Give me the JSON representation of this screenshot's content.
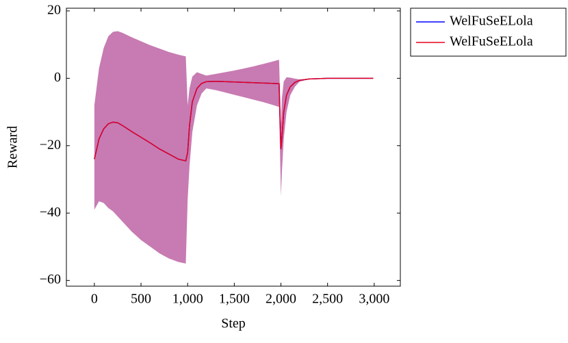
{
  "chart_data": {
    "type": "line",
    "x_label": "Step",
    "y_label": "Reward",
    "x": [
      0,
      50,
      100,
      150,
      200,
      250,
      300,
      400,
      500,
      600,
      700,
      800,
      900,
      980,
      1000,
      1020,
      1050,
      1100,
      1150,
      1200,
      1300,
      1400,
      1500,
      1600,
      1700,
      1800,
      1900,
      1980,
      2000,
      2010,
      2030,
      2060,
      2100,
      2150,
      2200,
      2300,
      2400,
      2500,
      2700,
      2990
    ],
    "series": [
      {
        "name": "WelFuSeELola",
        "color": "#0000ff",
        "values": [
          -24,
          -18,
          -15,
          -13.5,
          -13,
          -13.2,
          -14,
          -15.8,
          -17.5,
          -19.2,
          -21,
          -22.5,
          -24,
          -24.5,
          -22,
          -14,
          -7,
          -3,
          -1.5,
          -1,
          -0.9,
          -1,
          -1.1,
          -1.2,
          -1.3,
          -1.4,
          -1.5,
          -1.6,
          -21,
          -18,
          -10,
          -5,
          -2.5,
          -1.2,
          -0.6,
          -0.2,
          -0.1,
          0,
          0,
          0
        ]
      },
      {
        "name": "WelFuSeELola",
        "color": "#e8001c",
        "values": [
          -24,
          -18,
          -15,
          -13.5,
          -13,
          -13.2,
          -14,
          -15.8,
          -17.5,
          -19.2,
          -21,
          -22.5,
          -24,
          -24.5,
          -22,
          -14,
          -7,
          -3,
          -1.5,
          -1,
          -0.9,
          -1,
          -1.1,
          -1.2,
          -1.3,
          -1.4,
          -1.5,
          -1.6,
          -21,
          -18,
          -10,
          -5,
          -2.5,
          -1.2,
          -0.6,
          -0.2,
          -0.1,
          0,
          0,
          0
        ]
      }
    ],
    "band": {
      "color": "#c77bb2",
      "upper": [
        -8,
        3,
        9,
        12.5,
        13.8,
        14,
        13.5,
        12.2,
        11,
        9.8,
        8.8,
        7.8,
        7,
        6.5,
        -8,
        -3,
        0.5,
        1.8,
        1.3,
        0.8,
        1.3,
        1.8,
        2.3,
        2.9,
        3.5,
        4.2,
        4.9,
        5.5,
        -14,
        -6,
        -1,
        0.3,
        0.2,
        -0.1,
        -0.3,
        -0.2,
        -0.1,
        0,
        0,
        0
      ],
      "lower": [
        -39,
        -36.5,
        -37,
        -38.5,
        -39.5,
        -41,
        -42.5,
        -45.5,
        -48,
        -50,
        -52,
        -53.5,
        -54.5,
        -55,
        -36,
        -26,
        -16,
        -8,
        -4.5,
        -3,
        -3.5,
        -4.2,
        -4.9,
        -5.6,
        -6.3,
        -7,
        -7.8,
        -8.5,
        -35,
        -28,
        -18,
        -10,
        -5,
        -2.5,
        -1,
        -0.3,
        -0.1,
        0,
        0,
        0
      ]
    },
    "xlim": [
      -300,
      3280
    ],
    "ylim": [
      -61.7,
      20.8
    ],
    "xticks": [
      0,
      500,
      {
        "value": 1000,
        "label": "1,000"
      },
      {
        "value": 1500,
        "label": "1,500"
      },
      {
        "value": 2000,
        "label": "2,000"
      },
      {
        "value": 2500,
        "label": "2,500"
      },
      {
        "value": 3000,
        "label": "3,000"
      }
    ],
    "yticks": [
      {
        "value": -60,
        "label": "−60"
      },
      {
        "value": -40,
        "label": "−40"
      },
      {
        "value": -20,
        "label": "−20"
      },
      0,
      20
    ],
    "grid": false,
    "legend": "outside-right"
  }
}
